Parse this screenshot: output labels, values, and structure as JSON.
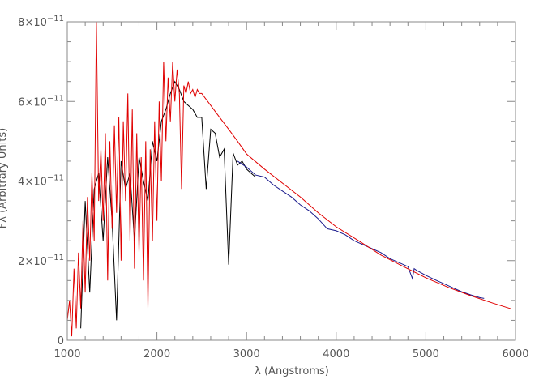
{
  "chart_data": {
    "type": "line",
    "title": "",
    "xlabel": "λ (Angstroms)",
    "ylabel": "Fλ (Arbitrary Units)",
    "xlim": [
      1000,
      6000
    ],
    "ylim": [
      0,
      8e-11
    ],
    "x_ticks": [
      1000,
      2000,
      3000,
      4000,
      5000,
      6000
    ],
    "x_tick_labels": [
      "1000",
      "2000",
      "3000",
      "4000",
      "5000",
      "6000"
    ],
    "x_minor_step": 200,
    "y_ticks": [
      0,
      2e-11,
      4e-11,
      6e-11,
      8e-11
    ],
    "y_tick_labels": [
      {
        "mant": "0",
        "exp": ""
      },
      {
        "mant": "2×10",
        "exp": "−11"
      },
      {
        "mant": "4×10",
        "exp": "−11"
      },
      {
        "mant": "6×10",
        "exp": "−11"
      },
      {
        "mant": "8×10",
        "exp": "−11"
      }
    ],
    "y_minor_step": 5e-12,
    "grid": false,
    "axis_color": "#888888",
    "series": [
      {
        "color": "#000000",
        "points": [
          [
            1150,
            3e-12
          ],
          [
            1200,
            3.5e-11
          ],
          [
            1250,
            1.2e-11
          ],
          [
            1300,
            3.8e-11
          ],
          [
            1350,
            4.2e-11
          ],
          [
            1400,
            2.5e-11
          ],
          [
            1450,
            4.6e-11
          ],
          [
            1500,
            3e-11
          ],
          [
            1550,
            5e-12
          ],
          [
            1600,
            4.5e-11
          ],
          [
            1650,
            3.8e-11
          ],
          [
            1700,
            4.2e-11
          ],
          [
            1750,
            2.5e-11
          ],
          [
            1800,
            4.6e-11
          ],
          [
            1850,
            4e-11
          ],
          [
            1900,
            3.5e-11
          ],
          [
            1950,
            5e-11
          ],
          [
            2000,
            4.5e-11
          ],
          [
            2050,
            5.5e-11
          ],
          [
            2100,
            5.8e-11
          ],
          [
            2150,
            6.2e-11
          ],
          [
            2200,
            6.5e-11
          ],
          [
            2250,
            6.3e-11
          ],
          [
            2300,
            6e-11
          ],
          [
            2350,
            5.9e-11
          ],
          [
            2400,
            5.8e-11
          ],
          [
            2450,
            5.6e-11
          ],
          [
            2500,
            5.6e-11
          ],
          [
            2550,
            3.8e-11
          ],
          [
            2600,
            5.3e-11
          ],
          [
            2650,
            5.2e-11
          ],
          [
            2700,
            4.6e-11
          ],
          [
            2750,
            4.8e-11
          ],
          [
            2800,
            1.9e-11
          ],
          [
            2850,
            4.7e-11
          ],
          [
            2900,
            4.4e-11
          ],
          [
            2950,
            4.5e-11
          ],
          [
            3000,
            4.3e-11
          ],
          [
            3050,
            4.2e-11
          ],
          [
            3100,
            4.1e-11
          ]
        ]
      },
      {
        "color": "#1a1a8c",
        "points": [
          [
            2900,
            4.5e-11
          ],
          [
            3000,
            4.35e-11
          ],
          [
            3100,
            4.15e-11
          ],
          [
            3200,
            4.1e-11
          ],
          [
            3300,
            3.9e-11
          ],
          [
            3400,
            3.75e-11
          ],
          [
            3500,
            3.6e-11
          ],
          [
            3600,
            3.4e-11
          ],
          [
            3700,
            3.25e-11
          ],
          [
            3800,
            3.05e-11
          ],
          [
            3900,
            2.8e-11
          ],
          [
            4000,
            2.75e-11
          ],
          [
            4100,
            2.65e-11
          ],
          [
            4200,
            2.5e-11
          ],
          [
            4300,
            2.4e-11
          ],
          [
            4400,
            2.3e-11
          ],
          [
            4500,
            2.2e-11
          ],
          [
            4600,
            2.05e-11
          ],
          [
            4700,
            1.95e-11
          ],
          [
            4800,
            1.85e-11
          ],
          [
            4850,
            1.55e-11
          ],
          [
            4870,
            1.8e-11
          ],
          [
            4900,
            1.75e-11
          ],
          [
            5000,
            1.63e-11
          ],
          [
            5100,
            1.52e-11
          ],
          [
            5200,
            1.42e-11
          ],
          [
            5300,
            1.32e-11
          ],
          [
            5400,
            1.22e-11
          ],
          [
            5500,
            1.14e-11
          ],
          [
            5600,
            1.07e-11
          ],
          [
            5650,
            1.05e-11
          ]
        ]
      },
      {
        "color": "#e00000",
        "points": [
          [
            1000,
            5e-12
          ],
          [
            1025,
            1e-11
          ],
          [
            1050,
            1e-12
          ],
          [
            1075,
            1.8e-11
          ],
          [
            1100,
            3e-12
          ],
          [
            1125,
            2.2e-11
          ],
          [
            1150,
            8e-12
          ],
          [
            1175,
            3e-11
          ],
          [
            1200,
            1.2e-11
          ],
          [
            1225,
            3.6e-11
          ],
          [
            1250,
            2e-11
          ],
          [
            1275,
            4.2e-11
          ],
          [
            1300,
            2.5e-11
          ],
          [
            1325,
            8e-11
          ],
          [
            1350,
            3.5e-11
          ],
          [
            1375,
            4.8e-11
          ],
          [
            1400,
            3e-11
          ],
          [
            1425,
            5.2e-11
          ],
          [
            1450,
            1.5e-11
          ],
          [
            1475,
            5e-11
          ],
          [
            1500,
            2.8e-11
          ],
          [
            1525,
            5.4e-11
          ],
          [
            1550,
            3.2e-11
          ],
          [
            1575,
            5.6e-11
          ],
          [
            1600,
            2e-11
          ],
          [
            1625,
            5.5e-11
          ],
          [
            1650,
            3.5e-11
          ],
          [
            1675,
            6.2e-11
          ],
          [
            1700,
            2.5e-11
          ],
          [
            1725,
            5.8e-11
          ],
          [
            1750,
            1.8e-11
          ],
          [
            1775,
            5.2e-11
          ],
          [
            1800,
            2.2e-11
          ],
          [
            1825,
            4.6e-11
          ],
          [
            1850,
            1.5e-11
          ],
          [
            1875,
            5e-11
          ],
          [
            1900,
            8e-12
          ],
          [
            1925,
            4.8e-11
          ],
          [
            1950,
            2.5e-11
          ],
          [
            1975,
            5.5e-11
          ],
          [
            2000,
            3e-11
          ],
          [
            2025,
            6e-11
          ],
          [
            2050,
            4e-11
          ],
          [
            2075,
            7e-11
          ],
          [
            2100,
            5e-11
          ],
          [
            2125,
            6.6e-11
          ],
          [
            2150,
            5.5e-11
          ],
          [
            2175,
            7e-11
          ],
          [
            2200,
            6e-11
          ],
          [
            2225,
            6.8e-11
          ],
          [
            2250,
            6.2e-11
          ],
          [
            2275,
            3.8e-11
          ],
          [
            2300,
            6.4e-11
          ],
          [
            2325,
            6.2e-11
          ],
          [
            2350,
            6.5e-11
          ],
          [
            2375,
            6.2e-11
          ],
          [
            2400,
            6.3e-11
          ],
          [
            2425,
            6.1e-11
          ],
          [
            2450,
            6.3e-11
          ],
          [
            2475,
            6.2e-11
          ],
          [
            2500,
            6.2e-11
          ],
          [
            2600,
            5.9e-11
          ],
          [
            2700,
            5.6e-11
          ],
          [
            2800,
            5.3e-11
          ],
          [
            2900,
            5e-11
          ],
          [
            3000,
            4.68e-11
          ],
          [
            3200,
            4.3e-11
          ],
          [
            3400,
            3.95e-11
          ],
          [
            3600,
            3.6e-11
          ],
          [
            3800,
            3.2e-11
          ],
          [
            4000,
            2.85e-11
          ],
          [
            4250,
            2.5e-11
          ],
          [
            4500,
            2.14e-11
          ],
          [
            4750,
            1.85e-11
          ],
          [
            5000,
            1.57e-11
          ],
          [
            5250,
            1.33e-11
          ],
          [
            5500,
            1.12e-11
          ],
          [
            5750,
            9.3e-12
          ],
          [
            5950,
            7.9e-12
          ]
        ]
      }
    ]
  }
}
